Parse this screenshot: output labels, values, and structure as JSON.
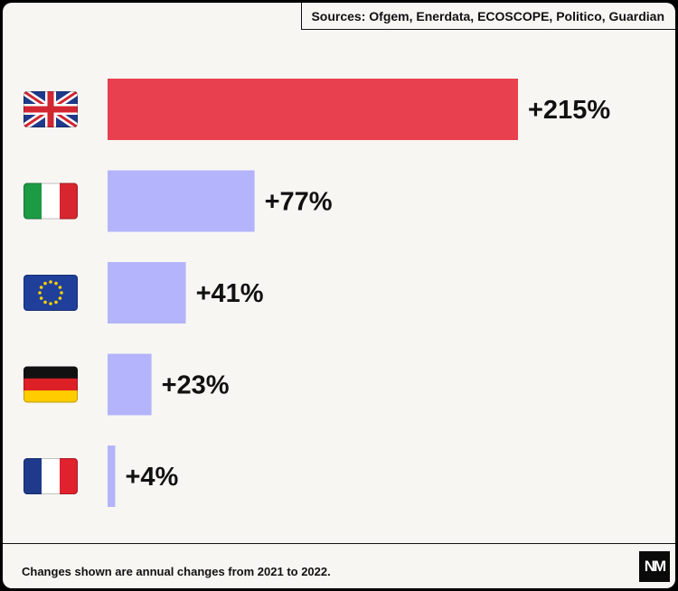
{
  "sources": "Sources: Ofgem, Enerdata, ECOSCOPE, Politico, Guardian",
  "footnote": "Changes shown are annual changes from 2021 to 2022.",
  "logo_text": "NM",
  "colors": {
    "highlight": "#e8404f",
    "bar": "#b3b4fb",
    "background": "#f7f6f3"
  },
  "chart_data": {
    "type": "bar",
    "orientation": "horizontal",
    "categories": [
      "UK",
      "Italy",
      "EU",
      "Germany",
      "France"
    ],
    "category_icons": [
      "uk-flag-icon",
      "italy-flag-icon",
      "eu-flag-icon",
      "germany-flag-icon",
      "france-flag-icon"
    ],
    "values": [
      215,
      77,
      41,
      23,
      4
    ],
    "labels": [
      "+215%",
      "+77%",
      "+41%",
      "+23%",
      "+4%"
    ],
    "highlight_index": 0,
    "title": "",
    "xlabel": "",
    "ylabel": "",
    "grid": false
  }
}
